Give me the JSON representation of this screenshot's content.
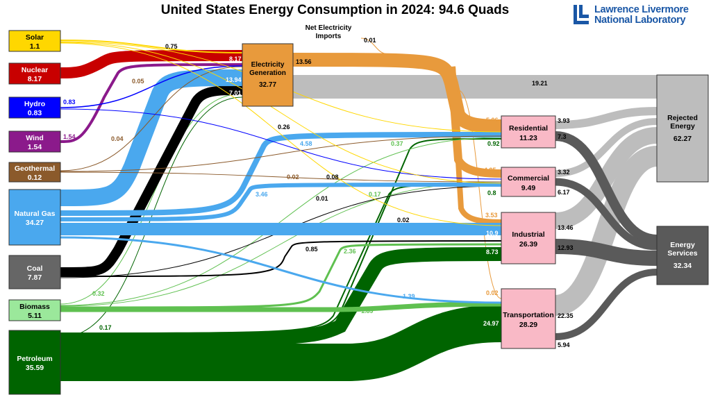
{
  "title": "United States Energy Consumption in 2024: 94.6 Quads",
  "logo": {
    "line1": "Lawrence Livermore",
    "line2": "National Laboratory"
  },
  "colors": {
    "solar": "#ffd700",
    "nuclear": "#c80000",
    "hydro": "#0000ff",
    "wind": "#8b1a8b",
    "geothermal": "#8b5a2b",
    "natural_gas": "#4aa8ee",
    "coal": "#000000",
    "biomass": "#5fc050",
    "petroleum": "#006400",
    "electricity": "#e89a3c",
    "rejected": "#bdbdbd",
    "services": "#5a5a5a",
    "sector_box": "#f9b9c6"
  },
  "net_imports": {
    "label_line1": "Net Electricity",
    "label_line2": "Imports",
    "value": "0.01"
  },
  "sources": [
    {
      "id": "solar",
      "name": "Solar",
      "value": "1.1"
    },
    {
      "id": "nuclear",
      "name": "Nuclear",
      "value": "8.17"
    },
    {
      "id": "hydro",
      "name": "Hydro",
      "value": "0.83"
    },
    {
      "id": "wind",
      "name": "Wind",
      "value": "1.54"
    },
    {
      "id": "geothermal",
      "name": "Geothermal",
      "value": "0.12"
    },
    {
      "id": "natural_gas",
      "name": "Natural Gas",
      "value": "34.27"
    },
    {
      "id": "coal",
      "name": "Coal",
      "value": "7.87"
    },
    {
      "id": "biomass",
      "name": "Biomass",
      "value": "5.11"
    },
    {
      "id": "petroleum",
      "name": "Petroleum",
      "value": "35.59"
    }
  ],
  "electricity": {
    "name_line1": "Electricity",
    "name_line2": "Generation",
    "value": "32.77"
  },
  "sectors": [
    {
      "id": "residential",
      "name": "Residential",
      "value": "11.23"
    },
    {
      "id": "commercial",
      "name": "Commercial",
      "value": "9.49"
    },
    {
      "id": "industrial",
      "name": "Industrial",
      "value": "26.39"
    },
    {
      "id": "transportation",
      "name": "Transportation",
      "value": "28.29"
    }
  ],
  "outputs": [
    {
      "id": "rejected",
      "name_line1": "Rejected",
      "name_line2": "Energy",
      "value": "62.27"
    },
    {
      "id": "services",
      "name_line1": "Energy",
      "name_line2": "Services",
      "value": "32.34"
    }
  ],
  "flows": [
    {
      "from": "Solar",
      "to": "Electricity Generation",
      "value": "0.75"
    },
    {
      "from": "Nuclear",
      "to": "Electricity Generation",
      "value": "8.17"
    },
    {
      "from": "Hydro",
      "to": "Electricity Generation",
      "value": "0.83"
    },
    {
      "from": "Wind",
      "to": "Electricity Generation",
      "value": "1.54"
    },
    {
      "from": "Geothermal",
      "to": "Electricity Generation",
      "value": "0.05"
    },
    {
      "from": "Natural Gas",
      "to": "Electricity Generation",
      "value": "13.94"
    },
    {
      "from": "Coal",
      "to": "Electricity Generation",
      "value": "7.01"
    },
    {
      "from": "Biomass",
      "to": "Electricity Generation",
      "value": "0.32"
    },
    {
      "from": "Petroleum",
      "to": "Electricity Generation",
      "value": "0.17"
    },
    {
      "from": "Net Electricity Imports",
      "to": "Electricity Generation",
      "value": "0.01"
    },
    {
      "from": "Electricity Generation",
      "to": "Rejected Energy",
      "value": "19.21"
    },
    {
      "from": "Electricity Generation",
      "to": "Residential",
      "value": "5.06"
    },
    {
      "from": "Electricity Generation",
      "to": "Commercial",
      "value": "4.95"
    },
    {
      "from": "Electricity Generation",
      "to": "Industrial",
      "value": "3.53"
    },
    {
      "from": "Electricity Generation",
      "to": "Transportation",
      "value": "0.02"
    },
    {
      "from": "Solar",
      "to": "Residential",
      "value": "0.26"
    },
    {
      "from": "Solar",
      "to": "Commercial",
      "value": "0.08"
    },
    {
      "from": "Solar",
      "to": "Industrial",
      "value": "0.02"
    },
    {
      "from": "Geothermal",
      "to": "Residential",
      "value": "0.04"
    },
    {
      "from": "Geothermal",
      "to": "Commercial",
      "value": "0.02"
    },
    {
      "from": "Natural Gas",
      "to": "Residential",
      "value": "4.58"
    },
    {
      "from": "Natural Gas",
      "to": "Commercial",
      "value": "3.46"
    },
    {
      "from": "Natural Gas",
      "to": "Industrial",
      "value": "10.9"
    },
    {
      "from": "Natural Gas",
      "to": "Transportation",
      "value": "1.39"
    },
    {
      "from": "Coal",
      "to": "Commercial",
      "value": "0.01"
    },
    {
      "from": "Coal",
      "to": "Industrial",
      "value": "0.85"
    },
    {
      "from": "Biomass",
      "to": "Residential",
      "value": "0.37"
    },
    {
      "from": "Biomass",
      "to": "Commercial",
      "value": "0.17"
    },
    {
      "from": "Biomass",
      "to": "Industrial",
      "value": "2.36"
    },
    {
      "from": "Biomass",
      "to": "Transportation",
      "value": "1.89"
    },
    {
      "from": "Petroleum",
      "to": "Residential",
      "value": "0.92"
    },
    {
      "from": "Petroleum",
      "to": "Commercial",
      "value": "0.8"
    },
    {
      "from": "Petroleum",
      "to": "Industrial",
      "value": "8.73"
    },
    {
      "from": "Petroleum",
      "to": "Transportation",
      "value": "24.97"
    },
    {
      "from": "Residential",
      "to": "Rejected Energy",
      "value": "3.93"
    },
    {
      "from": "Residential",
      "to": "Energy Services",
      "value": "7.3"
    },
    {
      "from": "Commercial",
      "to": "Rejected Energy",
      "value": "3.32"
    },
    {
      "from": "Commercial",
      "to": "Energy Services",
      "value": "6.17"
    },
    {
      "from": "Industrial",
      "to": "Rejected Energy",
      "value": "13.46"
    },
    {
      "from": "Industrial",
      "to": "Energy Services",
      "value": "12.93"
    },
    {
      "from": "Transportation",
      "to": "Rejected Energy",
      "value": "22.35"
    },
    {
      "from": "Transportation",
      "to": "Energy Services",
      "value": "5.94"
    }
  ]
}
